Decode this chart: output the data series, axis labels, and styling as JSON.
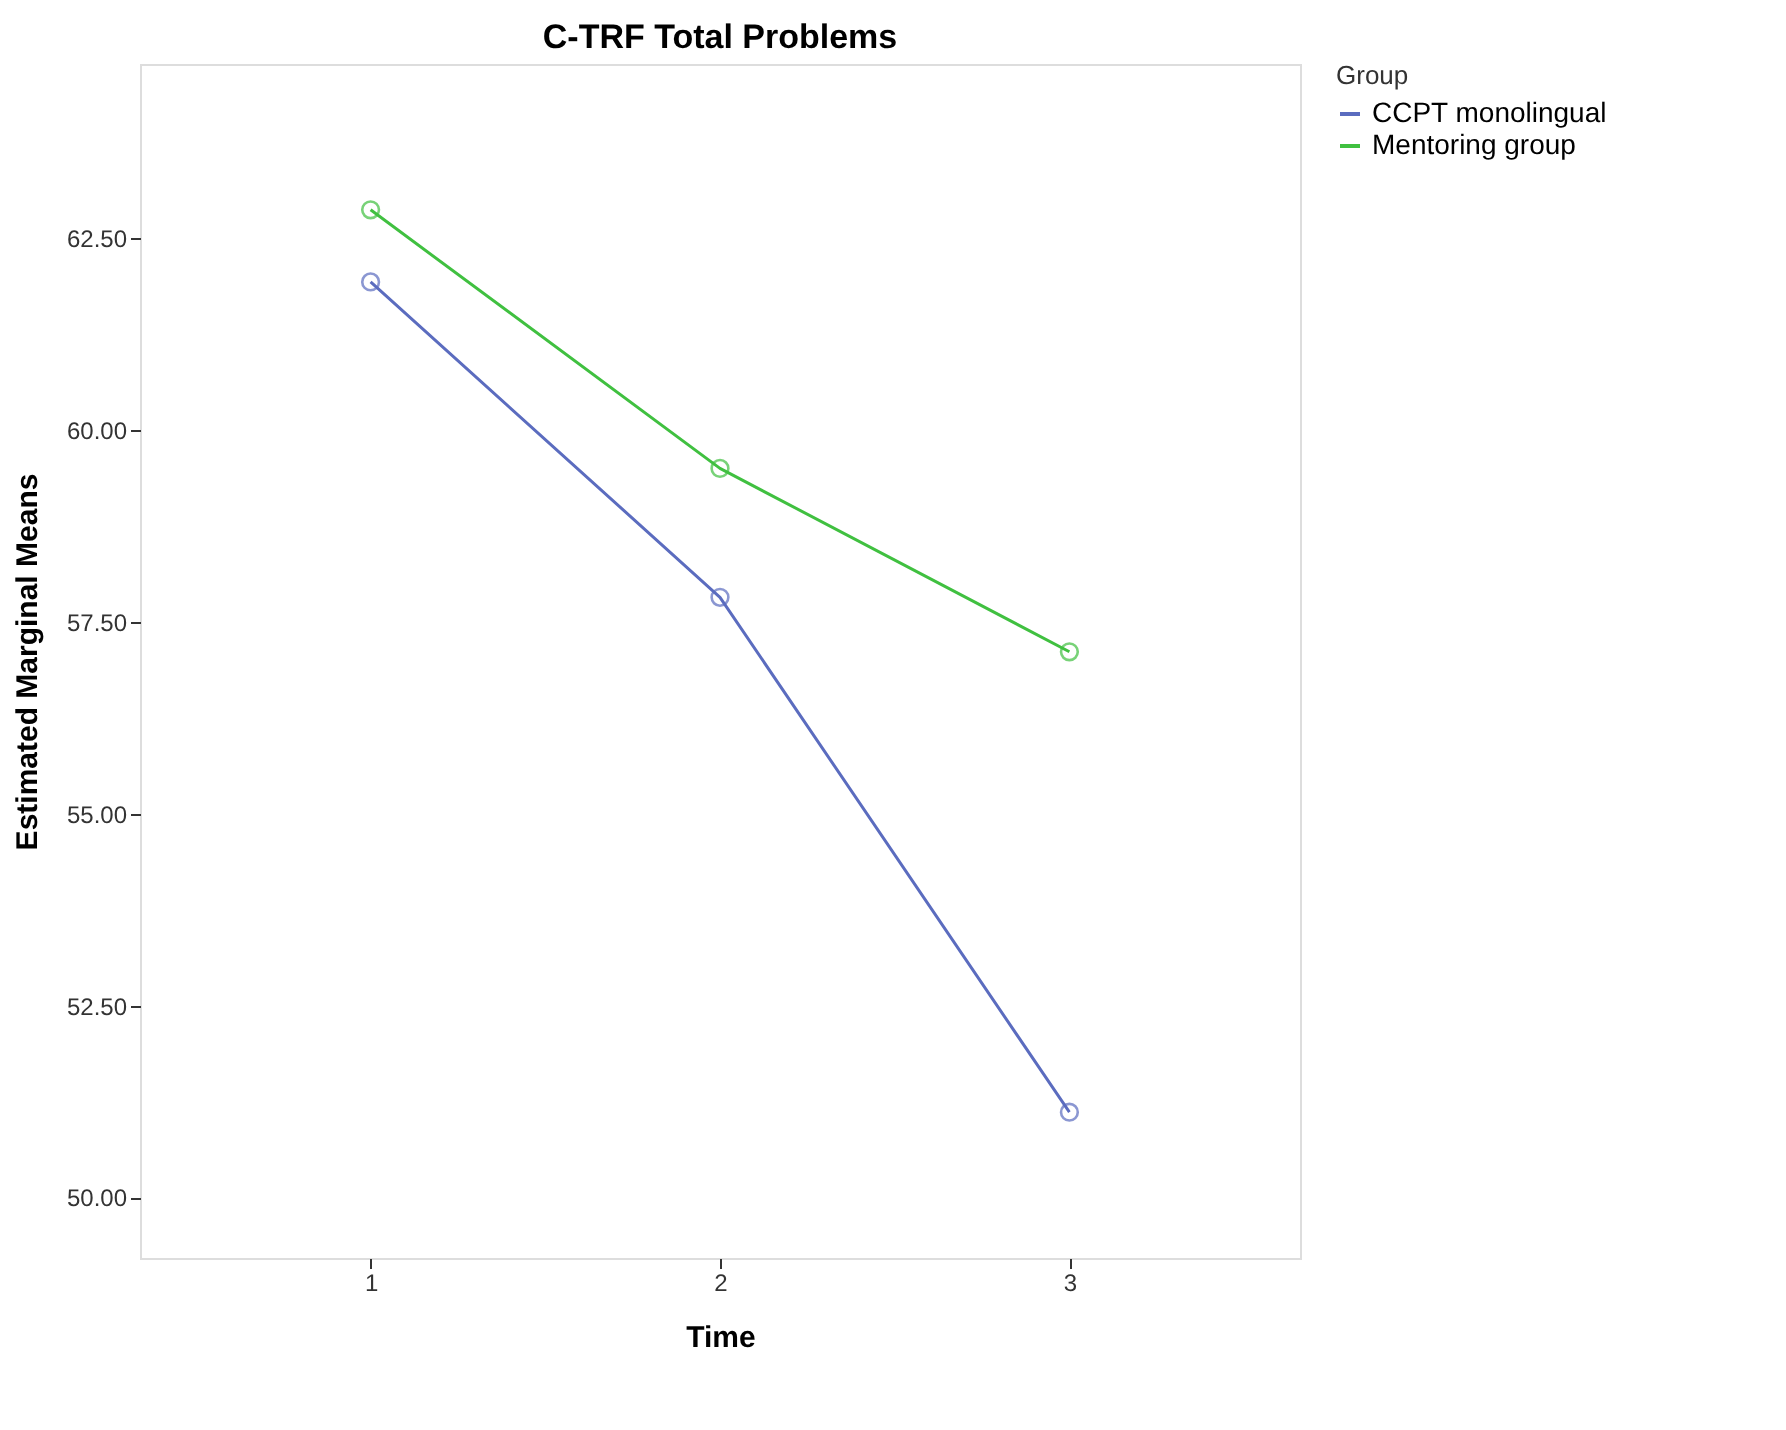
{
  "chart_data": {
    "type": "line",
    "title": "C-TRF Total Problems",
    "xlabel": "Time",
    "ylabel": "Estimated Marginal Means",
    "legend_title": "Group",
    "x": [
      1,
      2,
      3
    ],
    "series": [
      {
        "name": "CCPT monolingual",
        "color": "#5b6cbf",
        "values": [
          61.93,
          57.82,
          51.11
        ]
      },
      {
        "name": "Mentoring group",
        "color": "#40c040",
        "values": [
          62.87,
          59.5,
          57.11
        ]
      }
    ],
    "xlim": [
      0.34,
      3.66
    ],
    "xticks": [
      1,
      2,
      3
    ],
    "ylim": [
      49.21,
      64.77
    ],
    "yticks": [
      {
        "value": 50,
        "label": "50.00"
      },
      {
        "value": 52.5,
        "label": "52.50"
      },
      {
        "value": 55,
        "label": "55.00"
      },
      {
        "value": 57.5,
        "label": "57.50"
      },
      {
        "value": 60,
        "label": "60.00"
      },
      {
        "value": 62.5,
        "label": "62.50"
      }
    ],
    "grid": false,
    "legend": "top right",
    "marker": "circle",
    "line_style": "solid"
  }
}
